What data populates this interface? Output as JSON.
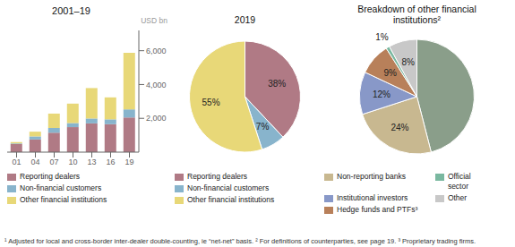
{
  "chart_data": [
    {
      "type": "bar",
      "stacked": true,
      "title": "2001–19",
      "ylabel": "USD bn",
      "categories": [
        "01",
        "04",
        "07",
        "10",
        "13",
        "16",
        "19"
      ],
      "series": [
        {
          "name": "Reporting dealers",
          "color": "#b07a85",
          "values": [
            480,
            750,
            1150,
            1480,
            1700,
            1650,
            2050
          ]
        },
        {
          "name": "Non-financial customers",
          "color": "#88b4cc",
          "values": [
            40,
            180,
            280,
            240,
            290,
            290,
            480
          ]
        },
        {
          "name": "Other financial institutions",
          "color": "#e8d878",
          "values": [
            80,
            280,
            850,
            1150,
            1800,
            1300,
            3350
          ]
        }
      ],
      "ylim": [
        0,
        7200
      ],
      "yticks": [
        {
          "value": 2000,
          "label": "2,000"
        },
        {
          "value": 4000,
          "label": "4,000"
        },
        {
          "value": 6000,
          "label": "6,000"
        }
      ],
      "grid": false,
      "legend": "bottom"
    },
    {
      "type": "pie",
      "title": "2019",
      "categories": [
        "Reporting dealers",
        "Non-financial customers",
        "Other financial institutions"
      ],
      "values": [
        38,
        7,
        55
      ],
      "colors": [
        "#b07a85",
        "#88b4cc",
        "#e8d878"
      ],
      "data_labels": true,
      "value_labels": [
        "38%",
        "7%",
        "55%"
      ],
      "legend": "bottom"
    },
    {
      "type": "pie",
      "title": "Breakdown of other financial\ninstitutions²",
      "categories": [
        null,
        "Non-reporting banks",
        "Institutional investors",
        "Hedge funds and PTFs³",
        "Official\nsector",
        "Other"
      ],
      "values": [
        46,
        24,
        12,
        9,
        1,
        8
      ],
      "colors": [
        "#8a9e8a",
        "#c8b890",
        "#8898c8",
        "#b8805a",
        "#7ab8a0",
        "#c8c8c8"
      ],
      "data_labels": true,
      "value_labels": [
        null,
        "24%",
        "12%",
        "9%",
        "1%",
        "8%"
      ],
      "legend": "bottom"
    }
  ],
  "annotations": [
    "¹ Adjusted for local and cross-border inter-dealer double-counting, ie “net-net” basis.  ² For definitions of counterparties, see page 19.  ³ Proprietary trading firms."
  ]
}
